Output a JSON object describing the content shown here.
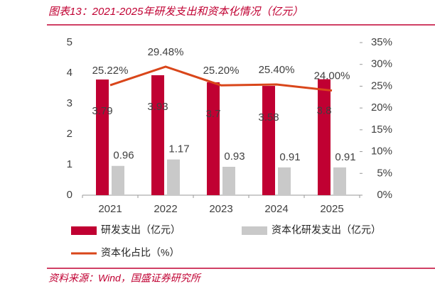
{
  "chart_data": {
    "type": "bar",
    "title": "图表13：2021-2025年研发支出和资本化情况（亿元）",
    "source": "资料来源：Wind，国盛证券研究所",
    "categories": [
      "2021",
      "2022",
      "2023",
      "2024",
      "2025"
    ],
    "series": [
      {
        "name": "研发支出（亿元）",
        "color": "#c00032",
        "values": [
          3.79,
          3.93,
          3.7,
          3.58,
          3.8
        ]
      },
      {
        "name": "资本化研发支出（亿元）",
        "color": "#c9c9c9",
        "values": [
          0.96,
          1.17,
          0.93,
          0.91,
          0.91
        ]
      },
      {
        "name": "资本化占比（%）",
        "color": "#d9461a",
        "type": "line",
        "axis": "y2",
        "values": [
          25.22,
          29.48,
          25.2,
          25.4,
          24.0
        ],
        "value_labels": [
          "25.22%",
          "29.48%",
          "25.20%",
          "25.40%",
          "24.00%"
        ]
      }
    ],
    "ylim": [
      0,
      5
    ],
    "yticks": [
      0,
      1,
      2,
      3,
      4,
      5
    ],
    "y2lim": [
      0,
      35
    ],
    "y2ticks": [
      {
        "value": 0,
        "label": "0%"
      },
      {
        "value": 5,
        "label": "5%"
      },
      {
        "value": 10,
        "label": "10%"
      },
      {
        "value": 15,
        "label": "15%"
      },
      {
        "value": 20,
        "label": "20%"
      },
      {
        "value": 25,
        "label": "25%"
      },
      {
        "value": 30,
        "label": "30%"
      },
      {
        "value": 35,
        "label": "35%"
      }
    ],
    "grid": false
  }
}
